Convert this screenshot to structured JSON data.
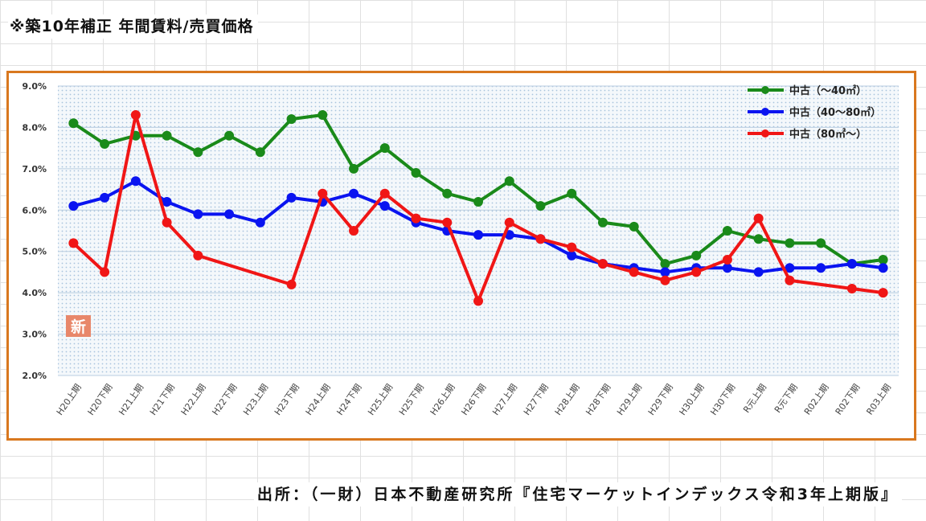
{
  "page": {
    "heading": "※築10年補正  年間賃料/売買価格",
    "source": "出所：（一財）日本不動産研究所『住宅マーケットインデックス令和3年上期版』",
    "new_badge": "新"
  },
  "chart_data": {
    "type": "line",
    "title": "",
    "xlabel": "",
    "ylabel": "",
    "ylim": [
      2.0,
      9.0
    ],
    "yticks": [
      "2.0%",
      "3.0%",
      "4.0%",
      "5.0%",
      "6.0%",
      "7.0%",
      "8.0%",
      "9.0%"
    ],
    "grid": true,
    "legend": "top-right",
    "categories": [
      "H20上期",
      "H20下期",
      "H21上期",
      "H21下期",
      "H22上期",
      "H22下期",
      "H23上期",
      "H23下期",
      "H24上期",
      "H24下期",
      "H25上期",
      "H25下期",
      "H26上期",
      "H26下期",
      "H27上期",
      "H27下期",
      "H28上期",
      "H28下期",
      "H29上期",
      "H29下期",
      "H30上期",
      "H30下期",
      "R元上期",
      "R元下期",
      "R02上期",
      "R02下期",
      "R03上期"
    ],
    "series": [
      {
        "name": "中古（～40㎡）",
        "color": "#1a8a1a",
        "values": [
          8.1,
          7.6,
          7.8,
          7.8,
          7.4,
          7.8,
          7.4,
          8.2,
          8.3,
          7.0,
          7.5,
          6.9,
          6.4,
          6.2,
          6.7,
          6.1,
          6.4,
          5.7,
          5.6,
          4.7,
          4.9,
          5.5,
          5.3,
          5.2,
          5.2,
          4.7,
          4.8
        ]
      },
      {
        "name": "中古（40～80㎡）",
        "color": "#0a14f0",
        "values": [
          6.1,
          6.3,
          6.7,
          6.2,
          5.9,
          5.9,
          5.7,
          6.3,
          6.2,
          6.4,
          6.1,
          5.7,
          5.5,
          5.4,
          5.4,
          5.3,
          4.9,
          4.7,
          4.6,
          4.5,
          4.6,
          4.6,
          4.5,
          4.6,
          4.6,
          4.7,
          4.6
        ]
      },
      {
        "name": "中古（80㎡～）",
        "color": "#f01616",
        "values": [
          5.2,
          4.5,
          8.3,
          5.7,
          4.9,
          null,
          null,
          4.2,
          6.4,
          5.5,
          6.4,
          5.8,
          5.7,
          3.8,
          5.7,
          5.3,
          5.1,
          4.7,
          4.5,
          4.3,
          4.5,
          4.8,
          5.8,
          4.3,
          null,
          4.1,
          4.0
        ]
      }
    ]
  }
}
